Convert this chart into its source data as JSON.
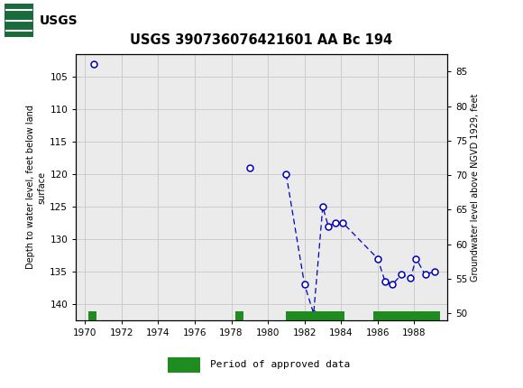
{
  "title": "USGS 390736076421601 AA Bc 194",
  "ylabel_left": "Depth to water level, feet below land\nsurface",
  "ylabel_right": "Groundwater level above NGVD 1929, feet",
  "xlim": [
    1969.5,
    1989.8
  ],
  "ylim_left": [
    142.5,
    101.5
  ],
  "ylim_right": [
    49.0,
    87.5
  ],
  "xticks": [
    1970,
    1972,
    1974,
    1976,
    1978,
    1980,
    1982,
    1984,
    1986,
    1988
  ],
  "yticks_left": [
    105,
    110,
    115,
    120,
    125,
    130,
    135,
    140
  ],
  "yticks_right": [
    85,
    80,
    75,
    70,
    65,
    60,
    55,
    50
  ],
  "grid_color": "#cccccc",
  "plot_bg_color": "#ebebeb",
  "fig_bg_color": "#ffffff",
  "header_color": "#1a6b3c",
  "data_points": {
    "x": [
      1970.5,
      1979.0,
      1981.0,
      1982.0,
      1982.5,
      1983.0,
      1983.3,
      1983.7,
      1984.1,
      1986.0,
      1986.4,
      1986.8,
      1987.3,
      1987.8,
      1988.1,
      1988.6,
      1989.1
    ],
    "y": [
      103.0,
      119.0,
      120.0,
      137.0,
      141.5,
      125.0,
      128.0,
      127.5,
      127.5,
      133.0,
      136.5,
      137.0,
      135.5,
      136.0,
      133.0,
      135.5,
      135.0
    ]
  },
  "connected_segments": {
    "x": [
      1981.0,
      1982.0,
      1982.5,
      1983.0,
      1983.3,
      1983.7,
      1984.1,
      1986.0,
      1986.4,
      1986.8,
      1987.3,
      1987.8,
      1988.1,
      1988.6,
      1989.1
    ],
    "y": [
      120.0,
      137.0,
      141.5,
      125.0,
      128.0,
      127.5,
      127.5,
      133.0,
      136.5,
      137.0,
      135.5,
      136.0,
      133.0,
      135.5,
      135.0
    ]
  },
  "approved_bars": [
    {
      "x_start": 1970.2,
      "x_end": 1970.65
    },
    {
      "x_start": 1978.2,
      "x_end": 1978.65
    },
    {
      "x_start": 1981.0,
      "x_end": 1984.2
    },
    {
      "x_start": 1985.75,
      "x_end": 1989.4
    }
  ],
  "marker_color": "#0000bb",
  "line_color": "#0000bb",
  "approved_color": "#1e8c1e",
  "marker_size": 5,
  "legend_label": "Period of approved data"
}
